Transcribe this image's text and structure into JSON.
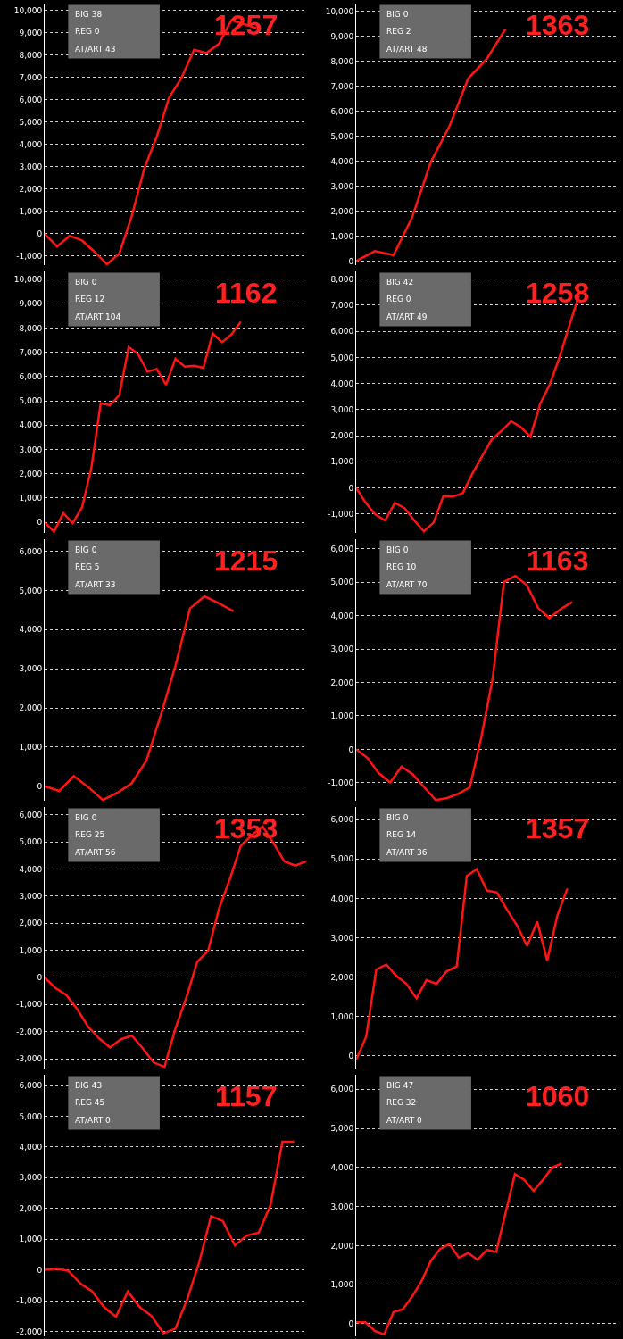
{
  "chart_data": [
    {
      "type": "line",
      "title": "1257",
      "annotations": [
        "BIG 38",
        "REG 0",
        "AT/ART 43"
      ],
      "categories": [
        null,
        null,
        null,
        null,
        null,
        null,
        null,
        null,
        null,
        null,
        null,
        null,
        null,
        null,
        null,
        null,
        null,
        null,
        null,
        null,
        null,
        null
      ],
      "series": [
        {
          "color": "#ff1414",
          "values": [
            0,
            -570,
            -90,
            -300,
            -800,
            -1360,
            -880,
            800,
            2920,
            4340,
            6100,
            6990,
            8230,
            8090,
            8500,
            9560,
            9380,
            9200,
            null,
            null,
            null,
            null
          ]
        }
      ],
      "ylim": [
        -1400,
        10300
      ],
      "yticks": [
        {
          "value": -1000,
          "label": "-1,000"
        },
        0,
        {
          "value": 1000,
          "label": "1,000"
        },
        {
          "value": 2000,
          "label": "2,000"
        },
        {
          "value": 3000,
          "label": "3,000"
        },
        {
          "value": 4000,
          "label": "4,000"
        },
        {
          "value": 5000,
          "label": "5,000"
        },
        {
          "value": 6000,
          "label": "6,000"
        },
        {
          "value": 7000,
          "label": "7,000"
        },
        {
          "value": 8000,
          "label": "8,000"
        },
        {
          "value": 9000,
          "label": "9,000"
        },
        {
          "value": 10000,
          "label": "10,000"
        }
      ],
      "grid": "y",
      "tick_labels": "y"
    },
    {
      "type": "line",
      "title": "1363",
      "annotations": [
        "BIG 0",
        "REG 2",
        "AT/ART 48"
      ],
      "categories": [
        null,
        null,
        null,
        null,
        null,
        null,
        null,
        null,
        null,
        null,
        null,
        null,
        null,
        null,
        null
      ],
      "series": [
        {
          "color": "#ff1414",
          "values": [
            0,
            400,
            240,
            1750,
            3970,
            5400,
            7300,
            8100,
            9290,
            null,
            null,
            null,
            null,
            null,
            null
          ]
        }
      ],
      "ylim": [
        -160,
        10300
      ],
      "yticks": [
        0,
        {
          "value": 1000,
          "label": "1,000"
        },
        {
          "value": 2000,
          "label": "2,000"
        },
        {
          "value": 3000,
          "label": "3,000"
        },
        {
          "value": 4000,
          "label": "4,000"
        },
        {
          "value": 5000,
          "label": "5,000"
        },
        {
          "value": 6000,
          "label": "6,000"
        },
        {
          "value": 7000,
          "label": "7,000"
        },
        {
          "value": 8000,
          "label": "8,000"
        },
        {
          "value": 9000,
          "label": "9,000"
        },
        {
          "value": 10000,
          "label": "10,000"
        }
      ],
      "grid": "y",
      "tick_labels": "y"
    },
    {
      "type": "line",
      "title": "1162",
      "annotations": [
        "BIG 0",
        "REG 12",
        "AT/ART 104"
      ],
      "categories": [
        null,
        null,
        null,
        null,
        null,
        null,
        null,
        null,
        null,
        null,
        null,
        null,
        null,
        null,
        null,
        null,
        null,
        null,
        null,
        null,
        null,
        null,
        null,
        null,
        null,
        null,
        null,
        null,
        null
      ],
      "series": [
        {
          "color": "#ff1414",
          "values": [
            0,
            -390,
            370,
            -30,
            610,
            2230,
            4900,
            4820,
            5230,
            7220,
            6930,
            6200,
            6310,
            5660,
            6730,
            6410,
            6440,
            6360,
            7770,
            7410,
            7730,
            8250,
            null,
            null,
            null,
            null,
            null,
            null,
            null
          ]
        }
      ],
      "ylim": [
        -440,
        10330
      ],
      "yticks": [
        0,
        {
          "value": 1000,
          "label": "1,000"
        },
        {
          "value": 2000,
          "label": "2,000"
        },
        {
          "value": 3000,
          "label": "3,000"
        },
        {
          "value": 4000,
          "label": "4,000"
        },
        {
          "value": 5000,
          "label": "5,000"
        },
        {
          "value": 6000,
          "label": "6,000"
        },
        {
          "value": 7000,
          "label": "7,000"
        },
        {
          "value": 8000,
          "label": "8,000"
        },
        {
          "value": 9000,
          "label": "9,000"
        },
        {
          "value": 10000,
          "label": "10,000"
        }
      ],
      "grid": "y",
      "tick_labels": "y"
    },
    {
      "type": "line",
      "title": "1258",
      "annotations": [
        "BIG 42",
        "REG 0",
        "AT/ART 49"
      ],
      "categories": [
        null,
        null,
        null,
        null,
        null,
        null,
        null,
        null,
        null,
        null,
        null,
        null,
        null,
        null,
        null,
        null,
        null,
        null,
        null,
        null,
        null,
        null,
        null,
        null,
        null,
        null,
        null,
        null
      ],
      "series": [
        {
          "color": "#ff1414",
          "values": [
            0,
            -580,
            -1030,
            -1250,
            -580,
            -780,
            -1250,
            -1670,
            -1330,
            -330,
            -330,
            -210,
            540,
            1210,
            1850,
            2180,
            2550,
            2330,
            1960,
            3220,
            3970,
            5010,
            6210,
            7370,
            null,
            null,
            null,
            null
          ]
        }
      ],
      "ylim": [
        -1730,
        8300
      ],
      "yticks": [
        {
          "value": -1000,
          "label": "-1,000"
        },
        0,
        {
          "value": 1000,
          "label": "1,000"
        },
        {
          "value": 2000,
          "label": "2,000"
        },
        {
          "value": 3000,
          "label": "3,000"
        },
        {
          "value": 4000,
          "label": "4,000"
        },
        {
          "value": 5000,
          "label": "5,000"
        },
        {
          "value": 6000,
          "label": "6,000"
        },
        {
          "value": 7000,
          "label": "7,000"
        },
        {
          "value": 8000,
          "label": "8,000"
        }
      ],
      "grid": "y",
      "tick_labels": "y"
    },
    {
      "type": "line",
      "title": "1215",
      "annotations": [
        "BIG 0",
        "REG 5",
        "AT/ART 33"
      ],
      "categories": [
        null,
        null,
        null,
        null,
        null,
        null,
        null,
        null,
        null,
        null,
        null,
        null,
        null,
        null,
        null,
        null,
        null,
        null,
        null
      ],
      "series": [
        {
          "color": "#ff1414",
          "values": [
            0,
            -120,
            260,
            -20,
            -350,
            -170,
            80,
            650,
            1820,
            3070,
            4540,
            4850,
            4670,
            4470,
            null,
            null,
            null,
            null,
            null
          ]
        }
      ],
      "ylim": [
        -370,
        6310
      ],
      "yticks": [
        0,
        {
          "value": 1000,
          "label": "1,000"
        },
        {
          "value": 2000,
          "label": "2,000"
        },
        {
          "value": 3000,
          "label": "3,000"
        },
        {
          "value": 4000,
          "label": "4,000"
        },
        {
          "value": 5000,
          "label": "5,000"
        },
        {
          "value": 6000,
          "label": "6,000"
        }
      ],
      "grid": "y",
      "tick_labels": "y"
    },
    {
      "type": "line",
      "title": "1163",
      "annotations": [
        "BIG 0",
        "REG 10",
        "AT/ART 70"
      ],
      "categories": [
        null,
        null,
        null,
        null,
        null,
        null,
        null,
        null,
        null,
        null,
        null,
        null,
        null,
        null,
        null,
        null,
        null,
        null,
        null,
        null,
        null,
        null,
        null,
        null
      ],
      "series": [
        {
          "color": "#ff1414",
          "values": [
            0,
            -260,
            -720,
            -990,
            -520,
            -760,
            -1140,
            -1520,
            -1460,
            -1330,
            -1140,
            350,
            2100,
            5010,
            5190,
            4920,
            4230,
            3930,
            4200,
            4410,
            null,
            null,
            null,
            null
          ]
        }
      ],
      "ylim": [
        -1540,
        6290
      ],
      "yticks": [
        {
          "value": -1000,
          "label": "-1,000"
        },
        0,
        {
          "value": 1000,
          "label": "1,000"
        },
        {
          "value": 2000,
          "label": "2,000"
        },
        {
          "value": 3000,
          "label": "3,000"
        },
        {
          "value": 4000,
          "label": "4,000"
        },
        {
          "value": 5000,
          "label": "5,000"
        },
        {
          "value": 6000,
          "label": "6,000"
        }
      ],
      "grid": "y",
      "tick_labels": "y"
    },
    {
      "type": "line",
      "title": "1353",
      "annotations": [
        "BIG 0",
        "REG 25",
        "AT/ART 56"
      ],
      "categories": [
        null,
        null,
        null,
        null,
        null,
        null,
        null,
        null,
        null,
        null,
        null,
        null,
        null,
        null,
        null,
        null,
        null,
        null,
        null,
        null,
        null,
        null,
        null,
        null,
        null
      ],
      "series": [
        {
          "color": "#ff1414",
          "values": [
            0,
            -390,
            -650,
            -1180,
            -1820,
            -2250,
            -2580,
            -2280,
            -2150,
            -2610,
            -3140,
            -3300,
            -1890,
            -750,
            570,
            980,
            2530,
            3630,
            4850,
            5250,
            5570,
            4960,
            4280,
            4130,
            4280
          ]
        }
      ],
      "ylim": [
        -3360,
        6290
      ],
      "yticks": [
        {
          "value": -3000,
          "label": "-3,000"
        },
        {
          "value": -2000,
          "label": "-2,000"
        },
        {
          "value": -1000,
          "label": "-1,000"
        },
        0,
        {
          "value": 1000,
          "label": "1,000"
        },
        {
          "value": 2000,
          "label": "2,000"
        },
        {
          "value": 3000,
          "label": "3,000"
        },
        {
          "value": 4000,
          "label": "4,000"
        },
        {
          "value": 5000,
          "label": "5,000"
        },
        {
          "value": 6000,
          "label": "6,000"
        }
      ],
      "grid": "y",
      "tick_labels": "y"
    },
    {
      "type": "line",
      "title": "1357",
      "annotations": [
        "BIG 0",
        "REG 14",
        "AT/ART 36"
      ],
      "categories": [
        null,
        null,
        null,
        null,
        null,
        null,
        null,
        null,
        null,
        null,
        null,
        null,
        null,
        null,
        null,
        null,
        null,
        null,
        null,
        null,
        null,
        null,
        null,
        null,
        null,
        null,
        null
      ],
      "series": [
        {
          "color": "#ff1414",
          "values": [
            -100,
            490,
            2190,
            2320,
            2030,
            1830,
            1460,
            1930,
            1830,
            2150,
            2270,
            4570,
            4740,
            4200,
            4150,
            3710,
            3310,
            2790,
            3410,
            2420,
            3560,
            4250,
            null,
            null,
            null,
            null,
            null
          ]
        }
      ],
      "ylim": [
        -320,
        6320
      ],
      "yticks": [
        0,
        {
          "value": 1000,
          "label": "1,000"
        },
        {
          "value": 2000,
          "label": "2,000"
        },
        {
          "value": 3000,
          "label": "3,000"
        },
        {
          "value": 4000,
          "label": "4,000"
        },
        {
          "value": 5000,
          "label": "5,000"
        },
        {
          "value": 6000,
          "label": "6,000"
        }
      ],
      "grid": "y",
      "tick_labels": "y"
    },
    {
      "type": "line",
      "title": "1157",
      "annotations": [
        "BIG 43",
        "REG 45",
        "AT/ART 0"
      ],
      "categories": [
        null,
        null,
        null,
        null,
        null,
        null,
        null,
        null,
        null,
        null,
        null,
        null,
        null,
        null,
        null,
        null,
        null,
        null,
        null,
        null,
        null,
        null,
        null
      ],
      "series": [
        {
          "color": "#ff1414",
          "values": [
            0,
            40,
            -30,
            -440,
            -700,
            -1210,
            -1520,
            -700,
            -1210,
            -1500,
            -2060,
            -1910,
            -950,
            250,
            1750,
            1590,
            800,
            1120,
            1210,
            2100,
            4170,
            4170,
            null
          ]
        }
      ],
      "ylim": [
        -2160,
        6350
      ],
      "yticks": [
        {
          "value": -2000,
          "label": "-2,000"
        },
        {
          "value": -1000,
          "label": "-1,000"
        },
        0,
        {
          "value": 1000,
          "label": "1,000"
        },
        {
          "value": 2000,
          "label": "2,000"
        },
        {
          "value": 3000,
          "label": "3,000"
        },
        {
          "value": 4000,
          "label": "4,000"
        },
        {
          "value": 5000,
          "label": "5,000"
        },
        {
          "value": 6000,
          "label": "6,000"
        }
      ],
      "grid": "y",
      "tick_labels": "y"
    },
    {
      "type": "line",
      "title": "1060",
      "annotations": [
        "BIG 47",
        "REG 32",
        "AT/ART 0"
      ],
      "categories": [
        null,
        null,
        null,
        null,
        null,
        null,
        null,
        null,
        null,
        null,
        null,
        null,
        null,
        null,
        null,
        null,
        null,
        null,
        null,
        null,
        null,
        null,
        null,
        null,
        null,
        null,
        null,
        null,
        null
      ],
      "series": [
        {
          "color": "#ff1414",
          "values": [
            40,
            40,
            -180,
            -270,
            300,
            370,
            700,
            1090,
            1610,
            1920,
            2040,
            1690,
            1810,
            1640,
            1890,
            1840,
            2840,
            3830,
            3680,
            3400,
            3680,
            4000,
            4100,
            null,
            null,
            null,
            null,
            null,
            null
          ]
        }
      ],
      "ylim": [
        -320,
        6370
      ],
      "yticks": [
        0,
        {
          "value": 1000,
          "label": "1,000"
        },
        {
          "value": 2000,
          "label": "2,000"
        },
        {
          "value": 3000,
          "label": "3,000"
        },
        {
          "value": 4000,
          "label": "4,000"
        },
        {
          "value": 5000,
          "label": "5,000"
        },
        {
          "value": 6000,
          "label": "6,000"
        }
      ],
      "grid": "y",
      "tick_labels": "y"
    }
  ]
}
